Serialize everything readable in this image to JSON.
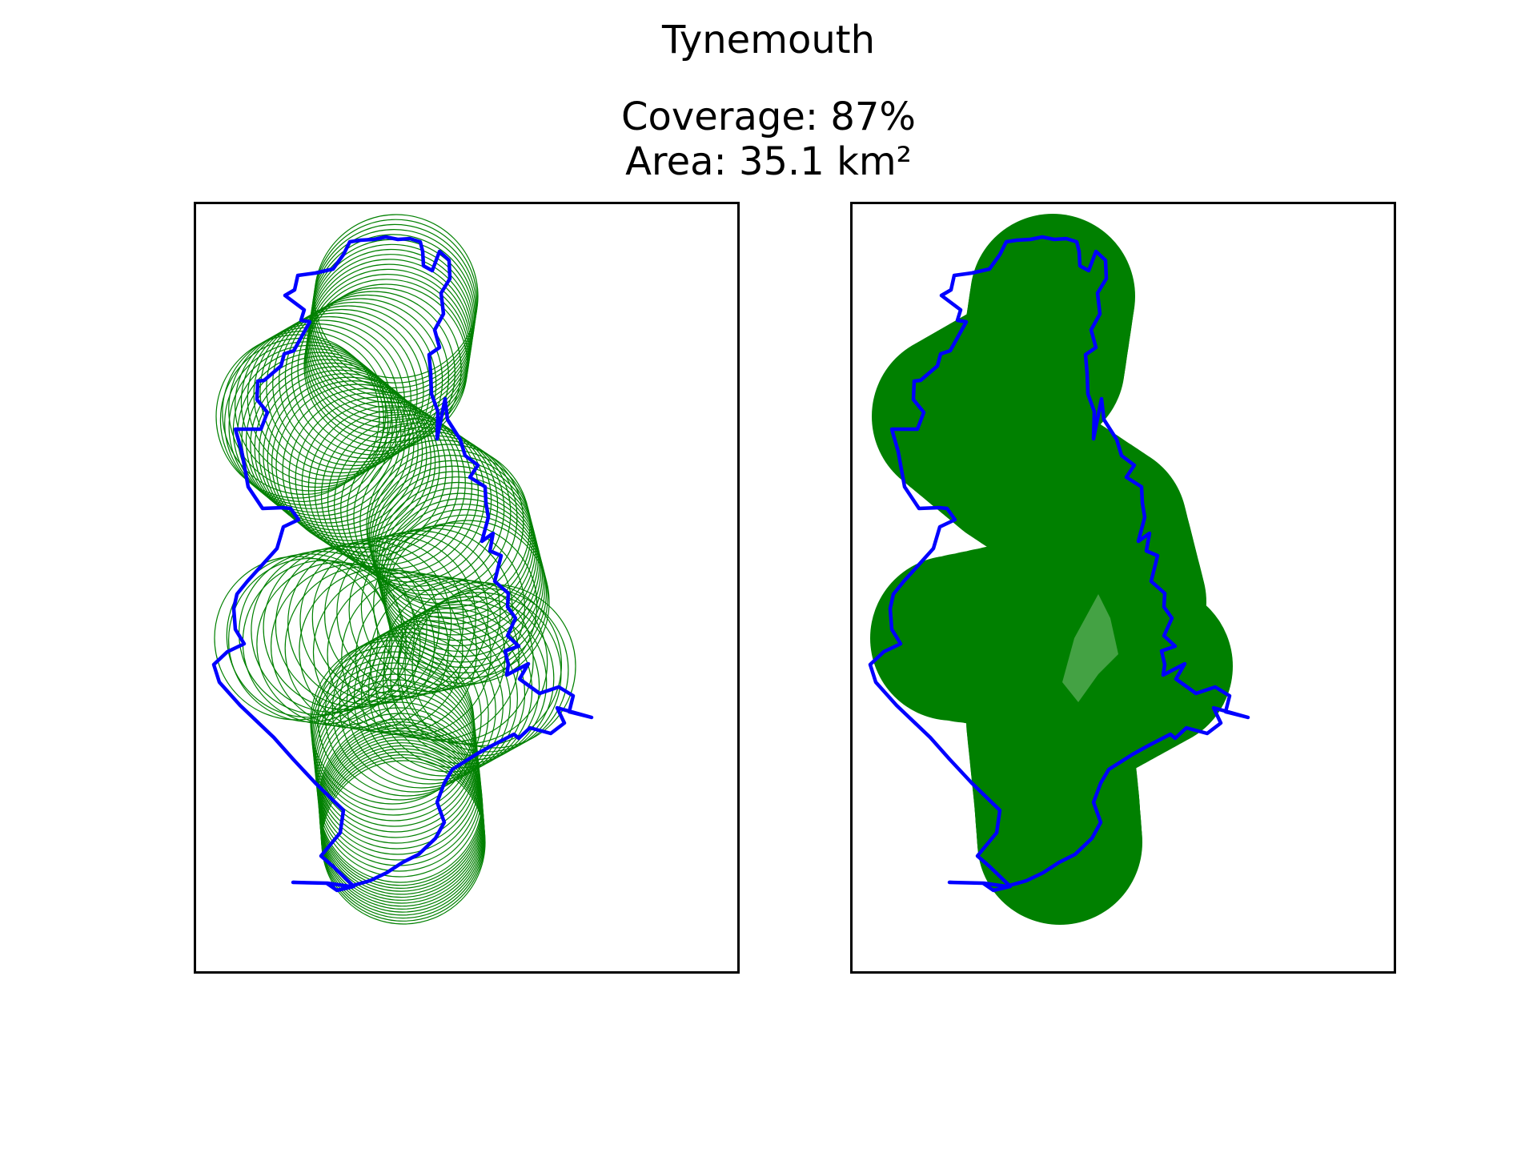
{
  "figure": {
    "title": "Tynemouth",
    "coverage_line": "Coverage: 87%",
    "area_line": "Area: 35.1 km²"
  },
  "panels": [
    {
      "id": "left",
      "style": "circle outlines"
    },
    {
      "id": "right",
      "style": "filled coverage union"
    }
  ],
  "colors": {
    "boundary": "#0000ff",
    "coverage": "#008000",
    "uncovered_hole": "#44a244",
    "frame": "#000000",
    "background": "#ffffff"
  }
}
